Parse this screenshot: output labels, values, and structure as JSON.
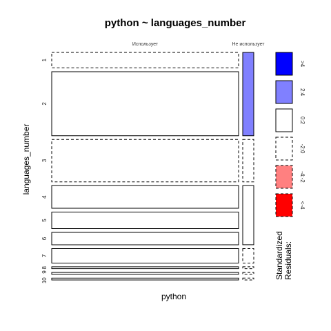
{
  "chart_data": {
    "type": "mosaic",
    "title": "python ~ languages_number",
    "xlabel": "python",
    "ylabel": "languages_number",
    "columns": [
      "Использует",
      "Не использует"
    ],
    "column_widths": [
      0.88,
      0.05
    ],
    "rows": [
      "1",
      "2",
      "3",
      "4",
      "5",
      "6",
      "7",
      "8",
      "9",
      "10"
    ],
    "row_heights": [
      0.075,
      0.31,
      0.205,
      0.11,
      0.08,
      0.06,
      0.07,
      0.009,
      0.009,
      0.009
    ],
    "residual_bins": [
      {
        "label": ">4",
        "fill": "#0000ff",
        "border": "solid"
      },
      {
        "label": "2:4",
        "fill": "#8080ff",
        "border": "solid"
      },
      {
        "label": "0:2",
        "fill": "#ffffff",
        "border": "solid"
      },
      {
        "label": "-2:0",
        "fill": "#ffffff",
        "border": "dashed"
      },
      {
        "label": "-4:-2",
        "fill": "#ff8080",
        "border": "dashed"
      },
      {
        "label": "<-4",
        "fill": "#ff0000",
        "border": "dashed"
      }
    ],
    "cells": [
      {
        "row": "1",
        "column": "Использует",
        "bin": "-2:0"
      },
      {
        "row": "2",
        "column": "Использует",
        "bin": "0:2"
      },
      {
        "row": "3",
        "column": "Использует",
        "bin": "-2:0"
      },
      {
        "row": "4",
        "column": "Использует",
        "bin": "0:2"
      },
      {
        "row": "5",
        "column": "Использует",
        "bin": "0:2"
      },
      {
        "row": "6",
        "column": "Использует",
        "bin": "0:2"
      },
      {
        "row": "7",
        "column": "Использует",
        "bin": "0:2"
      },
      {
        "row": "8",
        "column": "Использует",
        "bin": "0:2"
      },
      {
        "row": "9",
        "column": "Использует",
        "bin": "0:2"
      },
      {
        "row": "10",
        "column": "Использует",
        "bin": "0:2"
      },
      {
        "row": "1",
        "column": "Не использует",
        "bin": "2:4",
        "span": [
          "1",
          "2"
        ]
      },
      {
        "row": "3",
        "column": "Не использует",
        "bin": "-2:0"
      },
      {
        "row": "4",
        "column": "Не использует",
        "bin": "0:2",
        "span": [
          "4",
          "6"
        ]
      },
      {
        "row": "7",
        "column": "Не использует",
        "bin": "-2:0"
      },
      {
        "row": "8",
        "column": "Не использует",
        "bin": "-2:0"
      },
      {
        "row": "9",
        "column": "Не использует",
        "bin": "-2:0"
      },
      {
        "row": "10",
        "column": "Не использует",
        "bin": "-2:0"
      }
    ],
    "legend_title": [
      "Standardized",
      "Residuals:"
    ],
    "legend_position": "right",
    "grid": false
  }
}
